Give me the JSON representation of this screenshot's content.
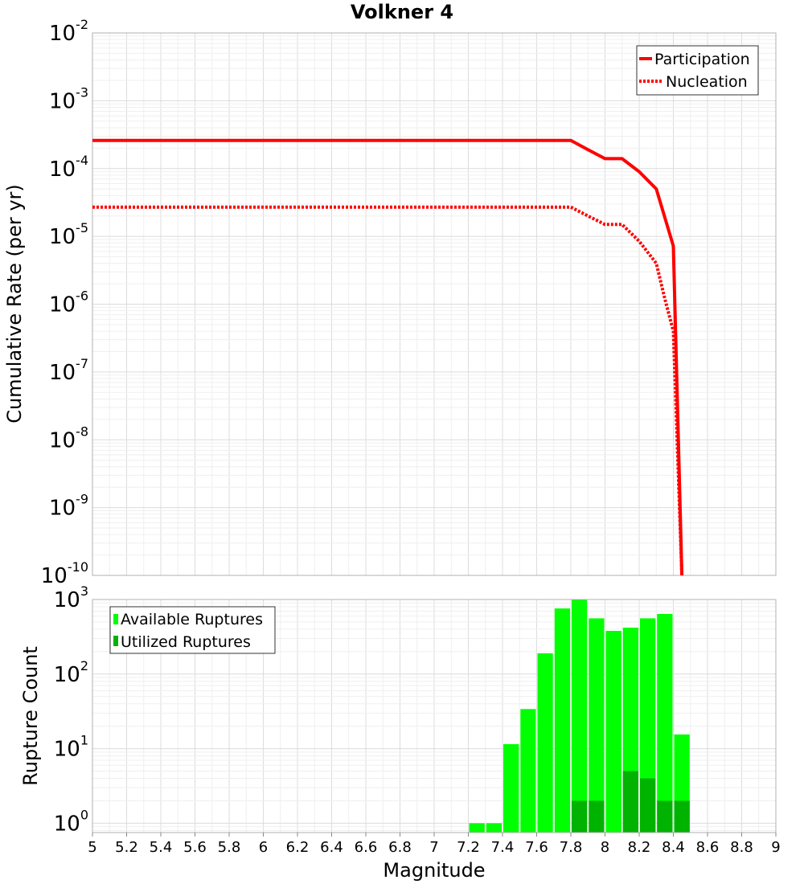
{
  "chart_data": [
    {
      "type": "line",
      "title": "Volkner 4",
      "ylabel": "Cumulative Rate (per yr)",
      "xlabel": "",
      "xlim": [
        5,
        9
      ],
      "ylim": [
        1e-10,
        0.01
      ],
      "yscale": "log",
      "grid": true,
      "legend_position": "top-right",
      "y_tick_exponents": [
        "-2",
        "-3",
        "-4",
        "-5",
        "-6",
        "-7",
        "-8",
        "-9",
        "-10"
      ],
      "series": [
        {
          "name": "Participation",
          "style": "solid",
          "color": "#ff0000",
          "x": [
            5.0,
            7.8,
            7.9,
            8.0,
            8.1,
            8.2,
            8.3,
            8.4,
            8.45
          ],
          "y": [
            0.00026,
            0.00026,
            0.00019,
            0.00014,
            0.00014,
            9e-05,
            5e-05,
            7.2e-06,
            1e-10
          ]
        },
        {
          "name": "Nucleation",
          "style": "dotted",
          "color": "#ff0000",
          "x": [
            5.0,
            7.8,
            7.9,
            8.0,
            8.1,
            8.2,
            8.3,
            8.35,
            8.4,
            8.45
          ],
          "y": [
            2.7e-05,
            2.7e-05,
            2e-05,
            1.5e-05,
            1.5e-05,
            8.5e-06,
            4e-06,
            1.2e-06,
            4e-07,
            1e-10
          ]
        }
      ]
    },
    {
      "type": "bar",
      "title": "",
      "xlabel": "Magnitude",
      "ylabel": "Rupture Count",
      "xlim": [
        5,
        9
      ],
      "ylim": [
        0.75,
        1000
      ],
      "yscale": "log",
      "grid": true,
      "legend_position": "top-left",
      "bin_width": 0.1,
      "y_tick_exponents": [
        "0",
        "1",
        "2",
        "3"
      ],
      "x_ticks": [
        "5",
        "5.2",
        "5.4",
        "5.6",
        "5.8",
        "6",
        "6.2",
        "6.4",
        "6.6",
        "6.8",
        "7",
        "7.2",
        "7.4",
        "7.6",
        "7.8",
        "8",
        "8.2",
        "8.4",
        "8.6",
        "8.8",
        "9"
      ],
      "categories": [
        7.25,
        7.35,
        7.45,
        7.55,
        7.65,
        7.75,
        7.85,
        7.95,
        8.05,
        8.15,
        8.25,
        8.35,
        8.45
      ],
      "series": [
        {
          "name": "Available Ruptures",
          "color": "#00ff00",
          "values": [
            1,
            1,
            11.5,
            34,
            190,
            760,
            1000,
            560,
            380,
            420,
            560,
            640,
            15.5
          ]
        },
        {
          "name": "Utilized Ruptures",
          "color": "#00b300",
          "values": [
            0,
            0,
            0,
            0,
            0,
            0,
            2,
            2,
            0,
            5,
            4,
            2,
            2
          ]
        }
      ]
    }
  ]
}
